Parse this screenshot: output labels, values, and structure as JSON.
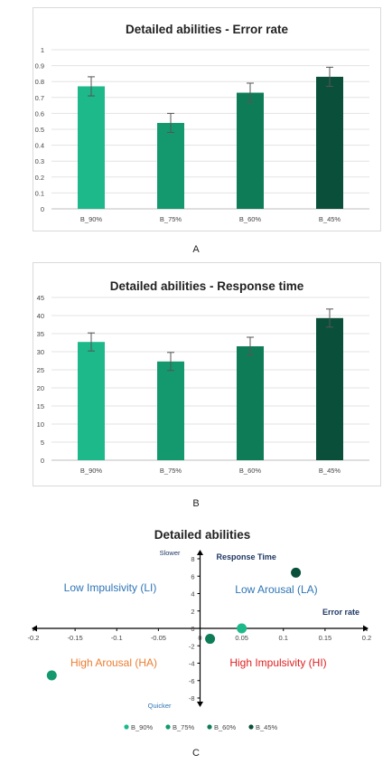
{
  "colors": [
    "#1db98a",
    "#13996d",
    "#0e7d57",
    "#0a4f39"
  ],
  "captions": {
    "a": "A",
    "b": "B",
    "c": "C"
  },
  "chart_data": [
    {
      "type": "bar",
      "title": "Detailed abilities - Error rate",
      "categories": [
        "B_90%",
        "B_75%",
        "B_60%",
        "B_45%"
      ],
      "values": [
        0.77,
        0.54,
        0.73,
        0.83
      ],
      "errors": [
        0.06,
        0.06,
        0.06,
        0.06
      ],
      "ylim": [
        0,
        1
      ],
      "yticks": [
        "0",
        "0.1",
        "0.2",
        "0.3",
        "0.4",
        "0.5",
        "0.6",
        "0.7",
        "0.8",
        "0.9",
        "1"
      ],
      "grid": true
    },
    {
      "type": "bar",
      "title": "Detailed abilities - Response time",
      "categories": [
        "B_90%",
        "B_75%",
        "B_60%",
        "B_45%"
      ],
      "values": [
        32.7,
        27.3,
        31.5,
        39.3
      ],
      "errors": [
        2.5,
        2.5,
        2.5,
        2.5
      ],
      "ylim": [
        0,
        45
      ],
      "yticks": [
        "0",
        "5",
        "10",
        "15",
        "20",
        "25",
        "30",
        "35",
        "40",
        "45"
      ],
      "grid": true
    },
    {
      "type": "scatter",
      "title": "Detailed abilities",
      "xlim": [
        -0.2,
        0.2
      ],
      "ylim": [
        -8,
        8
      ],
      "xticks": [
        "-0.2",
        "-0.15",
        "-0.1",
        "-0.05",
        "0",
        "0.05",
        "0.1",
        "0.15",
        "0.2"
      ],
      "yticks": [
        "8",
        "6",
        "4",
        "2",
        "0",
        "-2",
        "-4",
        "-6",
        "-8"
      ],
      "series": [
        {
          "name": "B_90%",
          "x": 0.05,
          "y": 0.0
        },
        {
          "name": "B_75%",
          "x": -0.178,
          "y": -5.4
        },
        {
          "name": "B_60%",
          "x": 0.012,
          "y": -1.2
        },
        {
          "name": "B_45%",
          "x": 0.115,
          "y": 6.4
        }
      ],
      "axis_labels": {
        "y_top": "Slower",
        "y_bottom": "Quicker",
        "y_name": "Response Time",
        "x_name": "Error rate"
      },
      "quadrants": {
        "top_left": "Low Impulsivity (LI)",
        "top_right": "Low Arousal (LA)",
        "bottom_left": "High Arousal (HA)",
        "bottom_right": "High Impulsivity (HI)"
      },
      "quadrant_colors": {
        "top_left": "#2e75b6",
        "top_right": "#2e75b6",
        "bottom_left": "#ed7d31",
        "bottom_right": "#e02020"
      },
      "legend_position": "bottom"
    }
  ]
}
